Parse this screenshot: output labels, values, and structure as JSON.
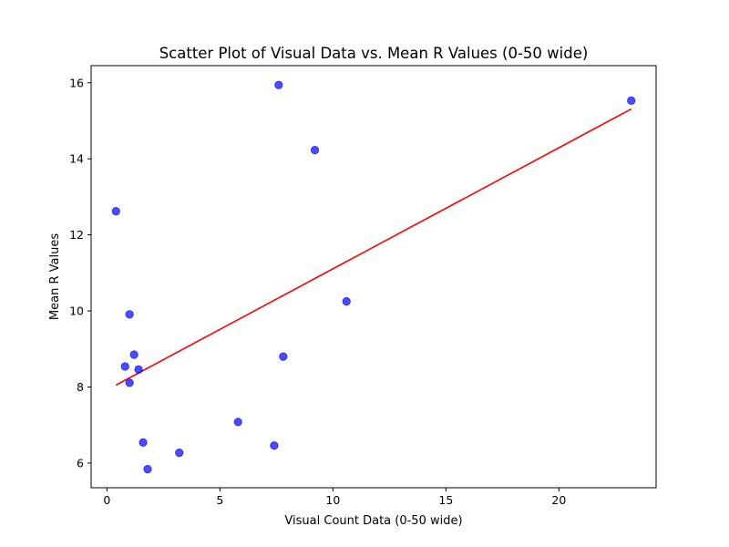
{
  "chart_data": {
    "type": "scatter",
    "title": "Scatter Plot of Visual Data vs. Mean R Values (0-50 wide)",
    "xlabel": "Visual Count Data (0-50 wide)",
    "ylabel": "Mean R Values",
    "xlim": [
      -0.7,
      24.3
    ],
    "ylim": [
      5.35,
      16.45
    ],
    "xticks": [
      0,
      5,
      10,
      15,
      20
    ],
    "yticks": [
      6,
      8,
      10,
      12,
      14,
      16
    ],
    "grid": false,
    "point_color": "#0000ff",
    "line_color": "#ff0000",
    "points": [
      {
        "x": 0.4,
        "y": 12.62
      },
      {
        "x": 0.8,
        "y": 8.54
      },
      {
        "x": 1.0,
        "y": 9.91
      },
      {
        "x": 1.0,
        "y": 8.11
      },
      {
        "x": 1.2,
        "y": 8.85
      },
      {
        "x": 1.4,
        "y": 8.46
      },
      {
        "x": 1.6,
        "y": 6.54
      },
      {
        "x": 1.8,
        "y": 5.84
      },
      {
        "x": 3.2,
        "y": 6.27
      },
      {
        "x": 5.8,
        "y": 7.08
      },
      {
        "x": 7.4,
        "y": 6.46
      },
      {
        "x": 7.6,
        "y": 15.94
      },
      {
        "x": 7.8,
        "y": 8.8
      },
      {
        "x": 9.2,
        "y": 14.23
      },
      {
        "x": 10.6,
        "y": 10.25
      },
      {
        "x": 23.2,
        "y": 15.53
      }
    ],
    "fit_line": {
      "x": [
        0.4,
        23.2
      ],
      "y": [
        8.05,
        15.31
      ]
    }
  }
}
